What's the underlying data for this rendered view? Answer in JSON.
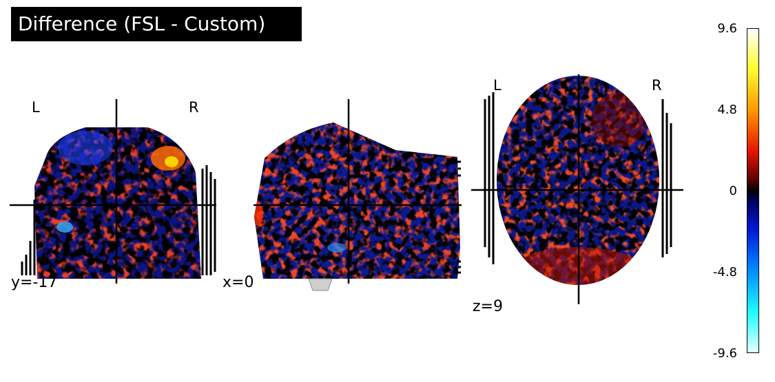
{
  "title": "Difference (FSL - Custom)",
  "panels": {
    "coronal": {
      "coord": "y=-17",
      "left": "L",
      "right": "R"
    },
    "sagittal": {
      "coord": "x=0"
    },
    "axial": {
      "coord": "z=9",
      "left": "L",
      "right": "R"
    }
  },
  "colorbar": {
    "ticks": [
      "9.6",
      "4.8",
      "0",
      "-4.8",
      "-9.6"
    ],
    "values": [
      9.6,
      4.8,
      0,
      -4.8,
      -9.6
    ],
    "colormap": "cold_hot",
    "vmin": -9.6,
    "vmax": 9.6
  },
  "colors": {
    "background": "#ffffff",
    "title_bg": "#000000",
    "title_fg": "#ffffff"
  }
}
